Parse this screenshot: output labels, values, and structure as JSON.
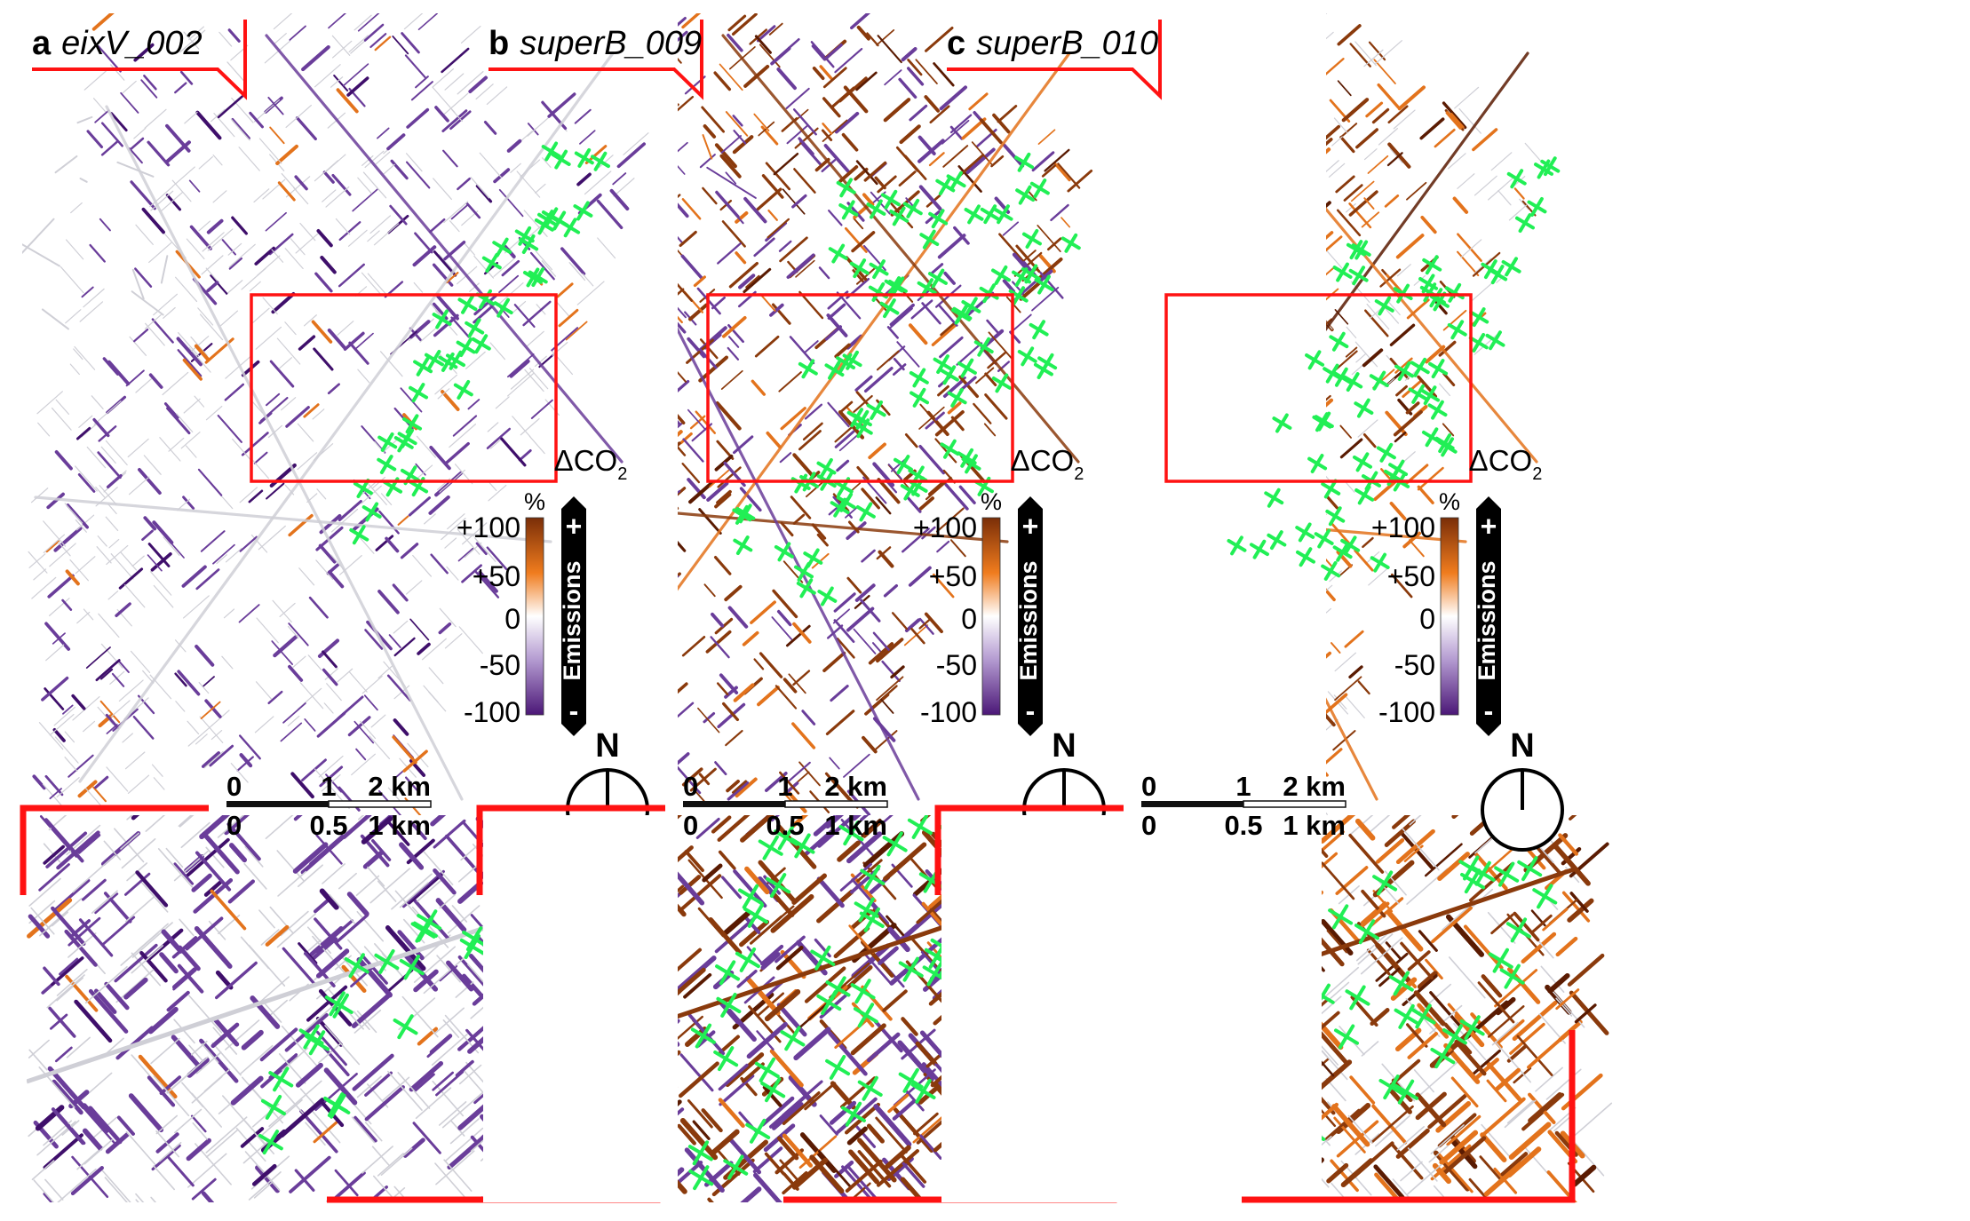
{
  "panels": [
    {
      "letter": "a",
      "scenario": "eixV_002",
      "street_tone": "reduce",
      "greens": [
        [
          0.55,
          0.62
        ],
        [
          0.59,
          0.56
        ],
        [
          0.62,
          0.5
        ],
        [
          0.66,
          0.45
        ],
        [
          0.7,
          0.4
        ],
        [
          0.74,
          0.36
        ],
        [
          0.78,
          0.31
        ],
        [
          0.81,
          0.27
        ],
        [
          0.86,
          0.22
        ],
        [
          0.88,
          0.16
        ]
      ]
    },
    {
      "letter": "b",
      "scenario": "superB_009",
      "street_tone": "mixed",
      "greens": [
        [
          0.62,
          0.2
        ],
        [
          0.7,
          0.24
        ],
        [
          0.78,
          0.22
        ],
        [
          0.86,
          0.2
        ],
        [
          0.6,
          0.32
        ],
        [
          0.68,
          0.36
        ],
        [
          0.76,
          0.34
        ],
        [
          0.84,
          0.32
        ],
        [
          0.92,
          0.3
        ],
        [
          0.55,
          0.44
        ],
        [
          0.63,
          0.48
        ],
        [
          0.71,
          0.46
        ],
        [
          0.79,
          0.44
        ],
        [
          0.87,
          0.42
        ],
        [
          0.52,
          0.56
        ],
        [
          0.6,
          0.6
        ],
        [
          0.68,
          0.58
        ],
        [
          0.76,
          0.56
        ],
        [
          0.45,
          0.66
        ],
        [
          0.53,
          0.7
        ]
      ]
    },
    {
      "letter": "c",
      "scenario": "superB_010",
      "street_tone": "increase",
      "greens": [
        [
          0.66,
          0.3
        ],
        [
          0.74,
          0.34
        ],
        [
          0.82,
          0.32
        ],
        [
          0.9,
          0.28
        ],
        [
          0.62,
          0.42
        ],
        [
          0.7,
          0.46
        ],
        [
          0.78,
          0.44
        ],
        [
          0.86,
          0.4
        ],
        [
          0.58,
          0.54
        ],
        [
          0.66,
          0.58
        ],
        [
          0.74,
          0.56
        ],
        [
          0.82,
          0.52
        ],
        [
          0.5,
          0.64
        ],
        [
          0.58,
          0.68
        ],
        [
          0.66,
          0.66
        ],
        [
          0.94,
          0.2
        ]
      ]
    }
  ],
  "legend": {
    "title_main": "ΔCO",
    "title_sub": "2",
    "unit": "%",
    "ticks": [
      "+100",
      "+50",
      "0",
      "-50",
      "-100"
    ],
    "side_label": "Emissions",
    "plus": "+",
    "minus": "-",
    "colors": {
      "top": "#7a2e08",
      "upper": "#f07c1e",
      "mid": "#ffffff",
      "lower": "#b49bd1",
      "bottom": "#4b1777"
    }
  },
  "north_label": "N",
  "scalebar": {
    "top": [
      "0",
      "1",
      "2 km"
    ],
    "bottom": [
      "0",
      "0.5",
      "1 km"
    ]
  },
  "colors": {
    "frame": "#ff1212",
    "green": "#21ef55",
    "base_street": "#cfcfd6",
    "purple": "#6a3d9a",
    "dark_purple": "#3f0f6b",
    "orange": "#e3731c",
    "brown": "#8a3a0c",
    "dark_brown": "#5a1b02"
  }
}
